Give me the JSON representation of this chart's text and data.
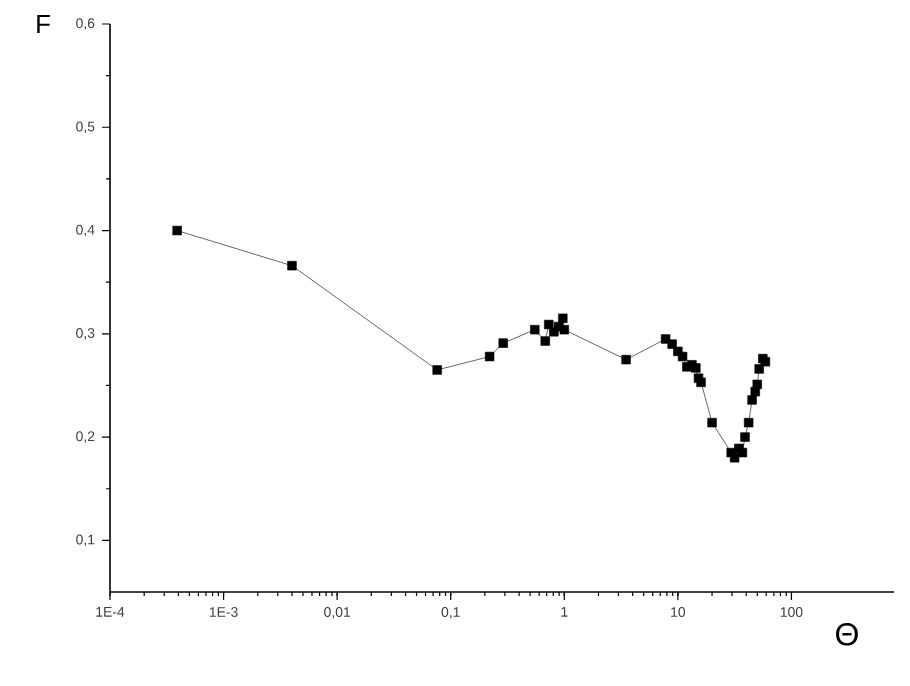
{
  "chart_data": {
    "type": "line",
    "xlabel": "Θ",
    "ylabel": "F",
    "log": "x",
    "marker": "square",
    "line_style": "solid",
    "xlim": [
      0.0001,
      800
    ],
    "ylim": [
      0.05,
      0.6
    ],
    "xticks": [
      {
        "value": 0.0001,
        "label": "1E-4"
      },
      {
        "value": 0.001,
        "label": "1E-3"
      },
      {
        "value": 0.01,
        "label": "0,01"
      },
      {
        "value": 0.1,
        "label": "0,1"
      },
      {
        "value": 1,
        "label": "1"
      },
      {
        "value": 10,
        "label": "10"
      },
      {
        "value": 100,
        "label": "100"
      }
    ],
    "yticks": [
      {
        "value": 0.1,
        "label": "0,1"
      },
      {
        "value": 0.2,
        "label": "0,2"
      },
      {
        "value": 0.3,
        "label": "0,3"
      },
      {
        "value": 0.4,
        "label": "0,4"
      },
      {
        "value": 0.5,
        "label": "0,5"
      },
      {
        "value": 0.6,
        "label": "0,6"
      }
    ],
    "series": [
      {
        "color": "#000000",
        "x": [
          0.00039,
          0.004,
          0.076,
          0.22,
          0.29,
          0.55,
          0.68,
          0.73,
          0.81,
          0.89,
          0.97,
          1.0,
          3.5,
          7.8,
          8.9,
          10,
          11,
          12,
          13.3,
          14.4,
          15.2,
          16,
          20,
          29.5,
          31.6,
          34.5,
          37,
          39,
          42,
          45,
          48,
          50,
          52,
          56,
          59
        ],
        "values": [
          0.4,
          0.366,
          0.265,
          0.278,
          0.291,
          0.304,
          0.293,
          0.309,
          0.302,
          0.307,
          0.315,
          0.304,
          0.275,
          0.295,
          0.29,
          0.283,
          0.278,
          0.268,
          0.27,
          0.267,
          0.257,
          0.253,
          0.214,
          0.185,
          0.18,
          0.189,
          0.185,
          0.2,
          0.214,
          0.236,
          0.244,
          0.251,
          0.266,
          0.276,
          0.273
        ]
      }
    ]
  }
}
